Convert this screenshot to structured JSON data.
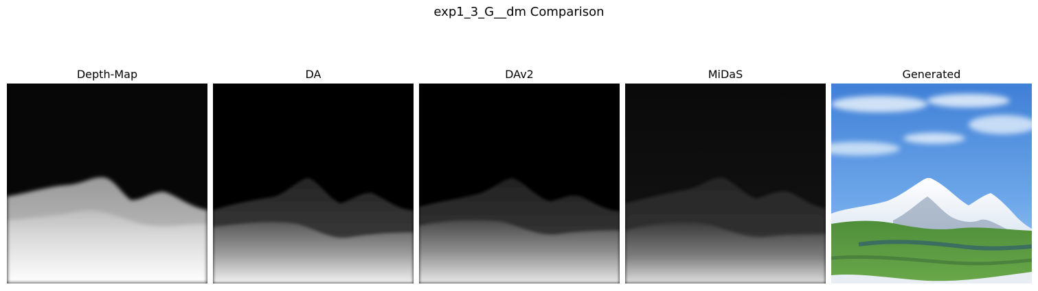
{
  "figure": {
    "title": "exp1_3_G__dm Comparison"
  },
  "panels": [
    {
      "title": "Depth-Map",
      "kind": "depth"
    },
    {
      "title": "DA",
      "kind": "depth"
    },
    {
      "title": "DAv2",
      "kind": "depth"
    },
    {
      "title": "MiDaS",
      "kind": "depth"
    },
    {
      "title": "Generated",
      "kind": "photo"
    }
  ]
}
